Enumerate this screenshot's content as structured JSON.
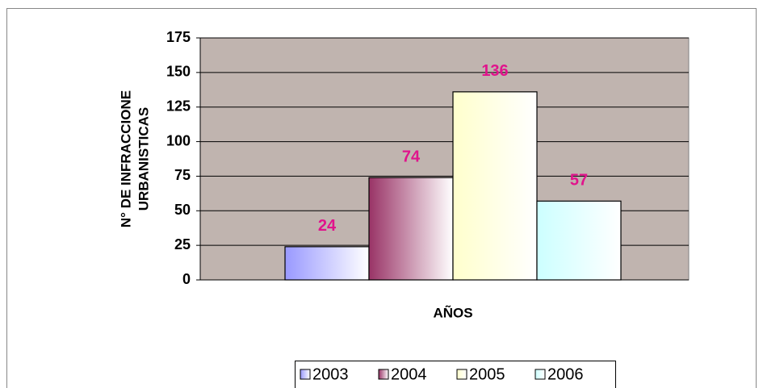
{
  "chart_data": {
    "type": "bar",
    "y_label": [
      "N° DE INFRACCIONE",
      "URBANISTICAS"
    ],
    "x_label": "AÑOS",
    "categories": [
      null
    ],
    "series": [
      {
        "name": "2003",
        "color": "#9999ff",
        "values": [
          24
        ]
      },
      {
        "name": "2004",
        "color": "#993366",
        "values": [
          74
        ]
      },
      {
        "name": "2005",
        "color": "#ffffcc",
        "values": [
          136
        ]
      },
      {
        "name": "2006",
        "color": "#ccffff",
        "values": [
          57
        ]
      }
    ],
    "ylim": [
      0,
      175
    ],
    "yticks": [
      0,
      25,
      50,
      75,
      100,
      125,
      150,
      175
    ],
    "grid": true,
    "legend": "bottom",
    "plot_background": "#c0b4af",
    "label_color": "#e0148c"
  }
}
